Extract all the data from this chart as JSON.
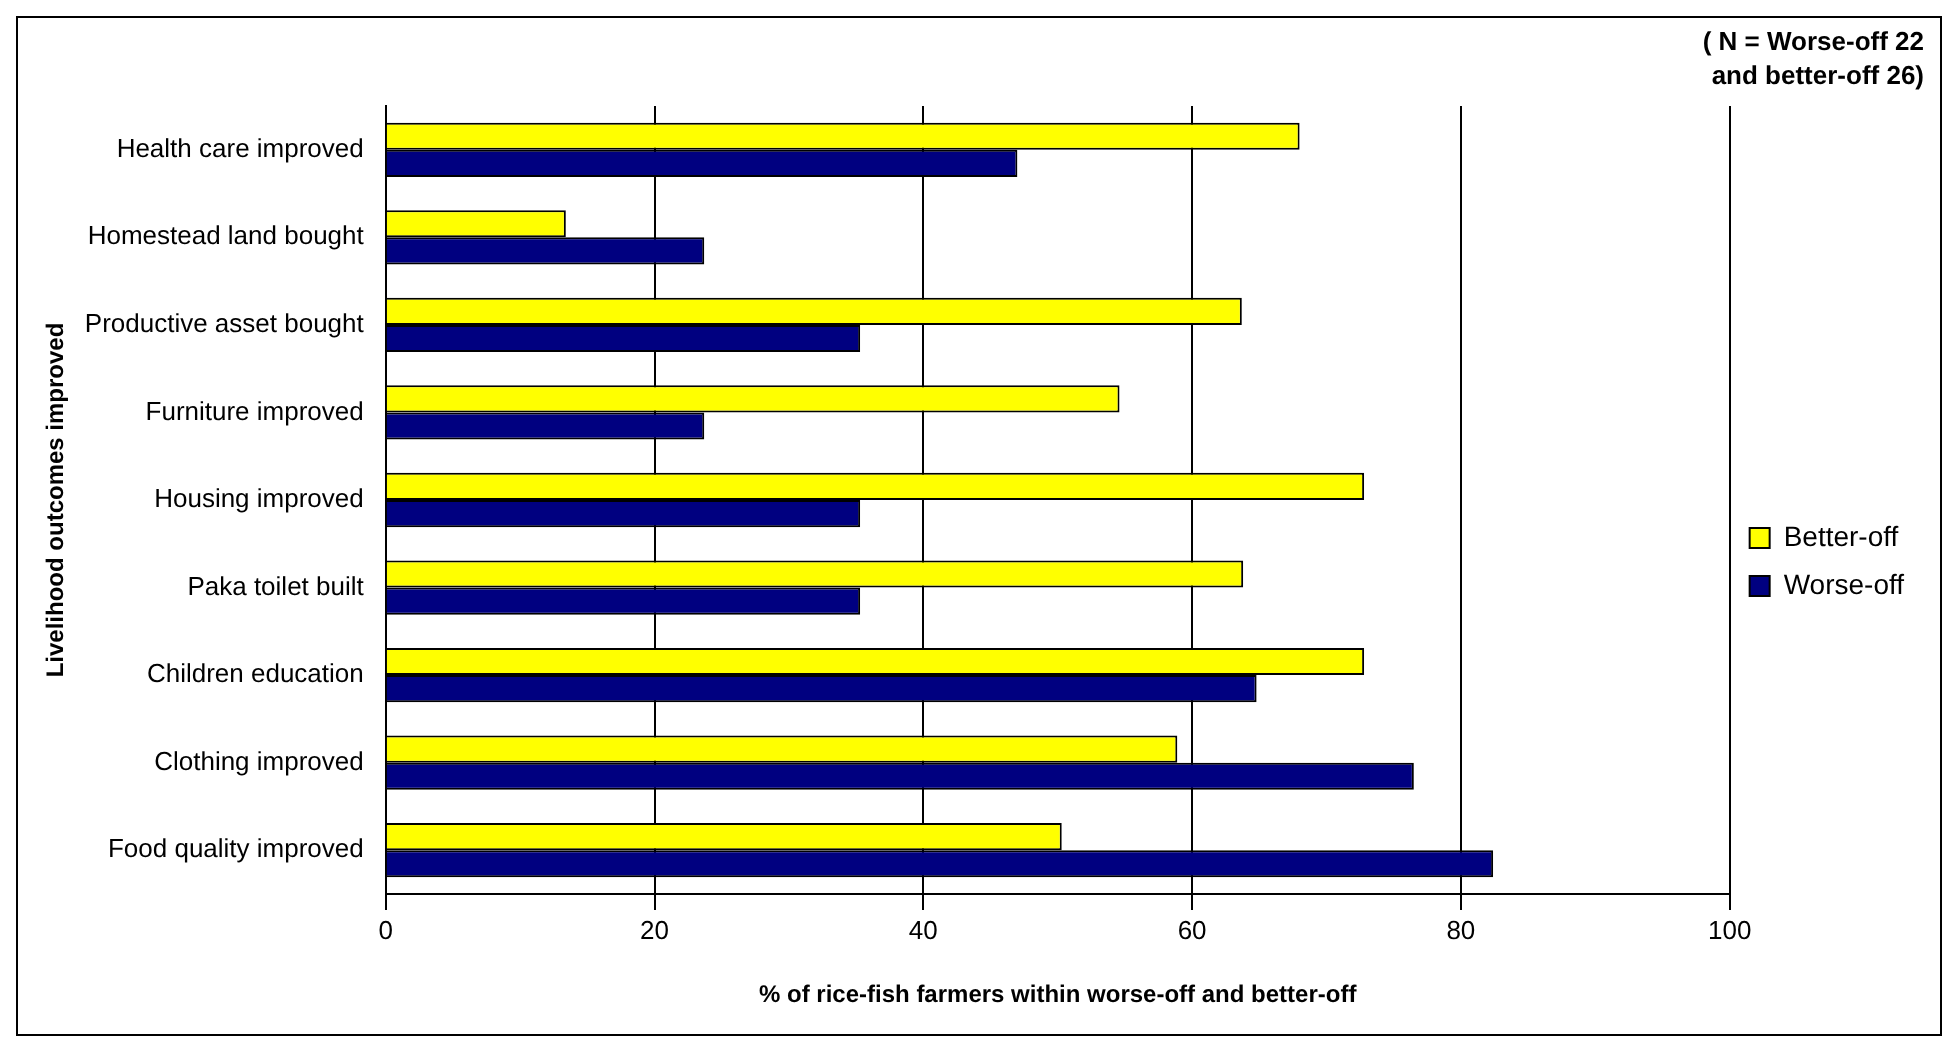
{
  "chart_data": {
    "type": "bar",
    "orientation": "horizontal",
    "xlabel": "% of rice-fish farmers within worse-off and better-off",
    "ylabel": "Livelihood outcomes improved",
    "annotations": [
      "( N = Worse-off 22 and better-off 26)"
    ],
    "categories": [
      "Health care improved",
      "Homestead land bought",
      "Productive asset bought",
      "Furniture improved",
      "Housing improved",
      "Paka toilet built",
      "Children education",
      "Clothing improved",
      "Food quality improved"
    ],
    "series": [
      {
        "name": "Better-off",
        "color": "#ffff00",
        "values": [
          68,
          13.4,
          63.7,
          54.6,
          72.8,
          63.8,
          72.8,
          58.9,
          50.3
        ]
      },
      {
        "name": "Worse-off",
        "color": "#000080",
        "values": [
          47,
          23.7,
          35.3,
          23.7,
          35.3,
          35.3,
          64.8,
          76.5,
          82.4
        ]
      }
    ],
    "xlim": [
      0,
      100
    ],
    "xticks": [
      0,
      20,
      40,
      60,
      80,
      100
    ],
    "grid": "x",
    "legend": "right"
  }
}
